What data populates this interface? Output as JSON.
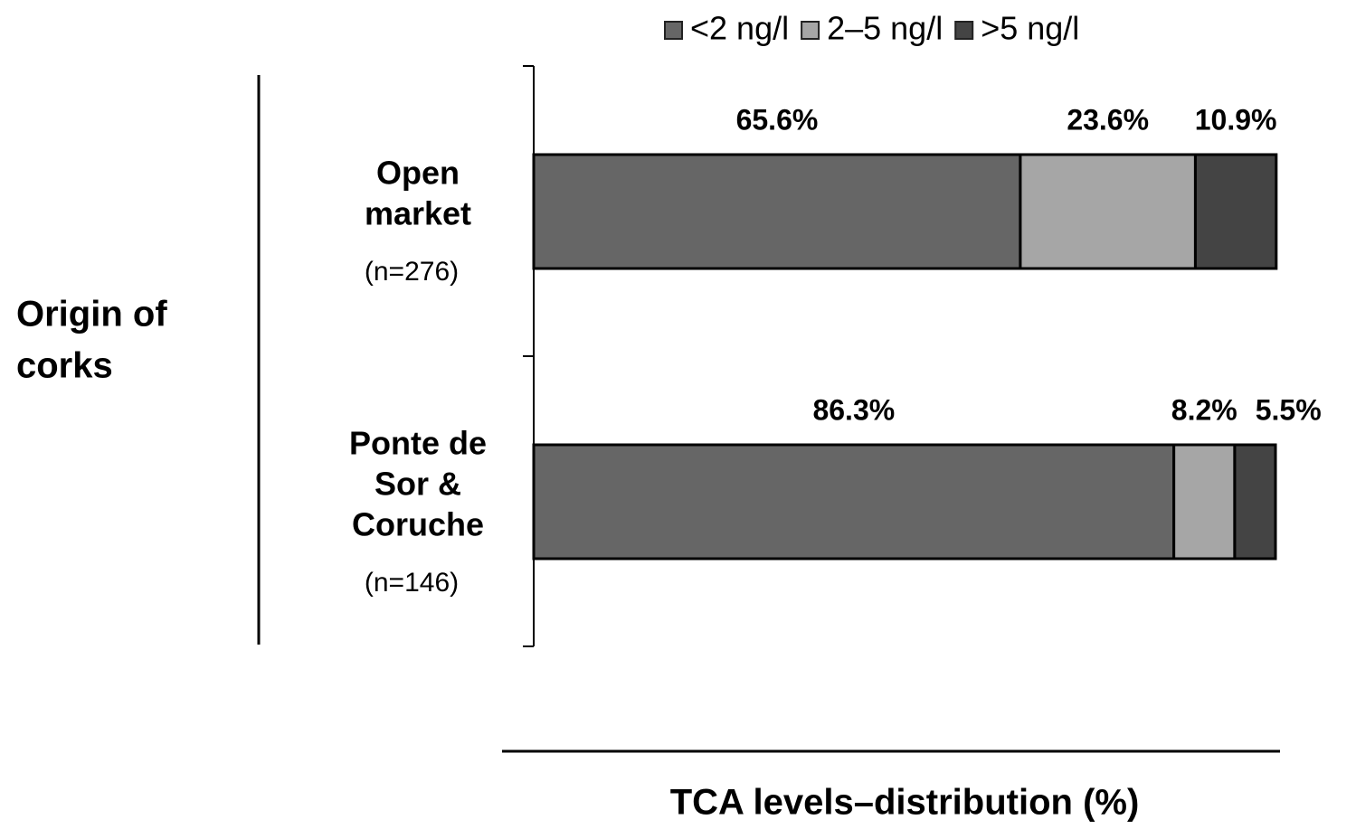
{
  "chart_data": {
    "type": "stacked_barh",
    "categories": [
      [
        "Open",
        "market"
      ],
      [
        "Ponte de",
        "Sor &",
        "Coruche"
      ]
    ],
    "category_notes": [
      "(n=276)",
      "(n=146)"
    ],
    "y_label": [
      "Origin of",
      "corks"
    ],
    "x_label": "TCA levels–distribution (%)",
    "xlim": [
      0,
      100
    ],
    "legend": "top",
    "series": [
      {
        "name": "<2 ng/l",
        "color": "#666666",
        "values": [
          65.6,
          86.3
        ],
        "value_labels": [
          "65.6%",
          "86.3%"
        ]
      },
      {
        "name": "2–5 ng/l",
        "color": "#a6a6a6",
        "values": [
          23.6,
          8.2
        ],
        "value_labels": [
          "23.6%",
          "8.2%"
        ]
      },
      {
        "name": ">5 ng/l",
        "color": "#444444",
        "values": [
          10.9,
          5.5
        ],
        "value_labels": [
          "10.9%",
          "5.5%"
        ]
      }
    ]
  }
}
